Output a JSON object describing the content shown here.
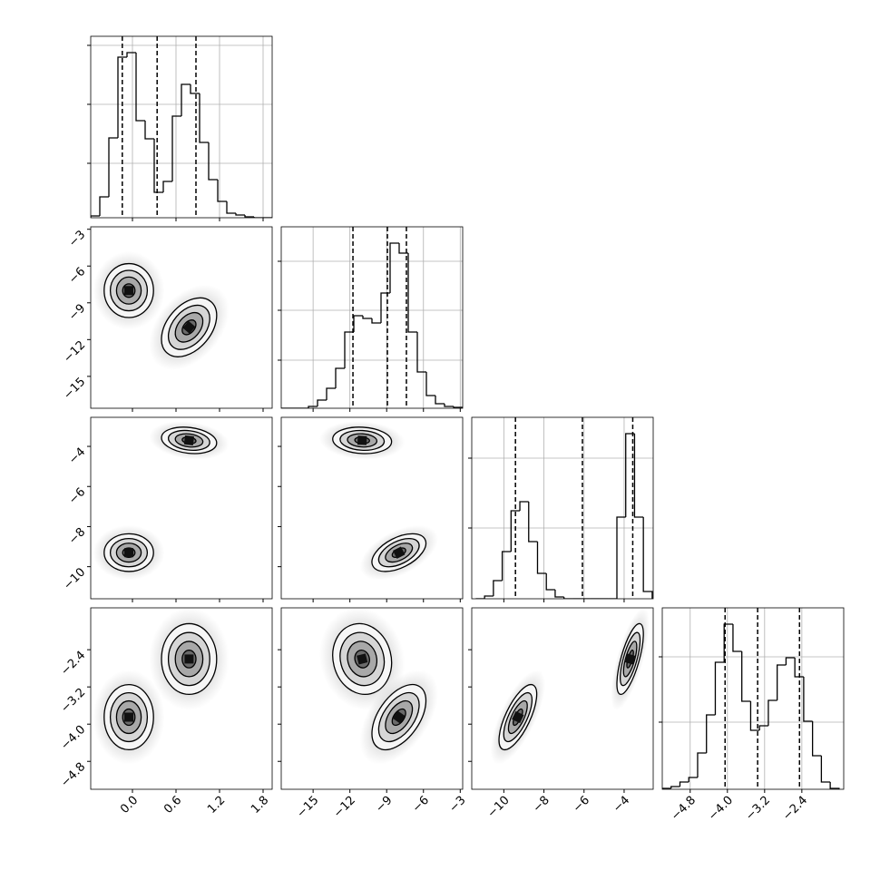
{
  "chart_data": {
    "type": "corner",
    "color": "#000000",
    "levels": [
      0.5,
      1,
      1.5,
      2
    ],
    "parameters": [
      {
        "lim": [
          -0.575,
          1.925
        ],
        "ticks": [
          {
            "value": 0,
            "label": "0.0"
          },
          0.6,
          1.2,
          1.8
        ],
        "bins": [
          -0.575,
          -0.45,
          -0.325,
          -0.2,
          -0.075,
          0.05,
          0.175,
          0.3,
          0.425,
          0.55,
          0.675,
          0.8,
          0.925,
          1.05,
          1.175,
          1.3,
          1.425,
          1.55,
          1.675,
          1.8,
          1.925
        ],
        "counts": [
          2,
          23,
          88,
          177,
          182,
          107,
          87,
          28,
          40,
          112,
          147,
          137,
          83,
          42,
          18,
          5,
          3,
          1,
          0,
          0
        ],
        "hist_ylim": [
          0,
          200
        ],
        "hist_yticks": [
          60,
          125,
          190
        ],
        "quantiles": [
          -0.14,
          0.34,
          0.875
        ]
      },
      {
        "lim": [
          -17.6,
          -2.8
        ],
        "ticks": [
          {
            "value": -15,
            "label": "−15"
          },
          {
            "value": -12,
            "label": "−12"
          },
          {
            "value": -9,
            "label": "−9"
          },
          {
            "value": -6,
            "label": "−6"
          },
          {
            "value": -3,
            "label": "−3"
          }
        ],
        "bins": [
          -17.6,
          -16.86,
          -16.12,
          -15.38,
          -14.64,
          -13.9,
          -13.16,
          -12.42,
          -11.68,
          -10.94,
          -10.2,
          -9.46,
          -8.72,
          -7.98,
          -7.24,
          -6.5,
          -5.76,
          -5.02,
          -4.28,
          -3.54,
          -2.8
        ],
        "counts": [
          0,
          0,
          0,
          2,
          9,
          22,
          44,
          84,
          102,
          99,
          94,
          127,
          182,
          171,
          84,
          40,
          14,
          5,
          2,
          1
        ],
        "hist_ylim": [
          0,
          200
        ],
        "hist_yticks": [
          53,
          108,
          162
        ],
        "quantiles": [
          -11.75,
          -8.94,
          -7.39
        ]
      },
      {
        "lim": [
          -11.6,
          -2.55
        ],
        "ticks": [
          {
            "value": -10,
            "label": "−10"
          },
          {
            "value": -8,
            "label": "−8"
          },
          {
            "value": -6,
            "label": "−6"
          },
          {
            "value": -4,
            "label": "−4"
          }
        ],
        "bins": [
          -11.4,
          -10.96,
          -10.52,
          -10.08,
          -9.64,
          -9.2,
          -8.76,
          -8.32,
          -7.88,
          -7.44,
          -7.0,
          -6.56,
          -6.12,
          -5.68,
          -5.24,
          -4.8,
          -4.36,
          -3.92,
          -3.48,
          -3.04,
          -2.6
        ],
        "counts": [
          0,
          3,
          20,
          52,
          97,
          107,
          63,
          28,
          10,
          2,
          0,
          0,
          0,
          0,
          0,
          0,
          90,
          182,
          90,
          8
        ],
        "hist_ylim": [
          0,
          200
        ],
        "hist_yticks": [
          78,
          155
        ],
        "quantiles": [
          -9.42,
          -6.08,
          -3.57
        ]
      },
      {
        "lim": [
          -5.4,
          -1.5
        ],
        "ticks": [
          {
            "value": -4.8,
            "label": "−4.8"
          },
          {
            "value": -4.0,
            "label": "−4.0"
          },
          {
            "value": -3.2,
            "label": "−3.2"
          },
          {
            "value": -2.4,
            "label": "−2.4"
          }
        ],
        "bins": [
          -5.4,
          -5.21,
          -5.02,
          -4.83,
          -4.64,
          -4.45,
          -4.26,
          -4.07,
          -3.88,
          -3.69,
          -3.5,
          -3.31,
          -3.12,
          -2.93,
          -2.74,
          -2.55,
          -2.36,
          -2.17,
          -1.98,
          -1.79,
          -1.6
        ],
        "counts": [
          1,
          3,
          8,
          13,
          40,
          82,
          140,
          182,
          152,
          97,
          65,
          70,
          98,
          137,
          145,
          124,
          75,
          37,
          8,
          1
        ],
        "hist_ylim": [
          0,
          200
        ],
        "hist_yticks": [
          74,
          146
        ],
        "quantiles": [
          -4.05,
          -3.35,
          -2.45
        ]
      }
    ],
    "modes": [
      {
        "means": [
          -0.05,
          -8,
          -9.3,
          -3.85
        ],
        "sds": [
          0.17,
          1.1,
          0.47,
          0.35
        ]
      },
      {
        "means": [
          0.78,
          -11,
          -3.7,
          -2.6
        ],
        "sds": [
          0.19,
          1.2,
          0.33,
          0.38
        ]
      }
    ],
    "panels": [
      {
        "x": 0,
        "y": 1,
        "rho": [
          0,
          0.4
        ]
      },
      {
        "x": 0,
        "y": 2,
        "rho": [
          0,
          -0.2
        ]
      },
      {
        "x": 1,
        "y": 2,
        "rho": [
          0.5,
          -0.1
        ]
      },
      {
        "x": 0,
        "y": 3,
        "rho": [
          0,
          0
        ]
      },
      {
        "x": 1,
        "y": 3,
        "rho": [
          0.5,
          -0.1
        ]
      },
      {
        "x": 2,
        "y": 3,
        "rho": [
          0.7,
          0.7
        ]
      }
    ]
  }
}
